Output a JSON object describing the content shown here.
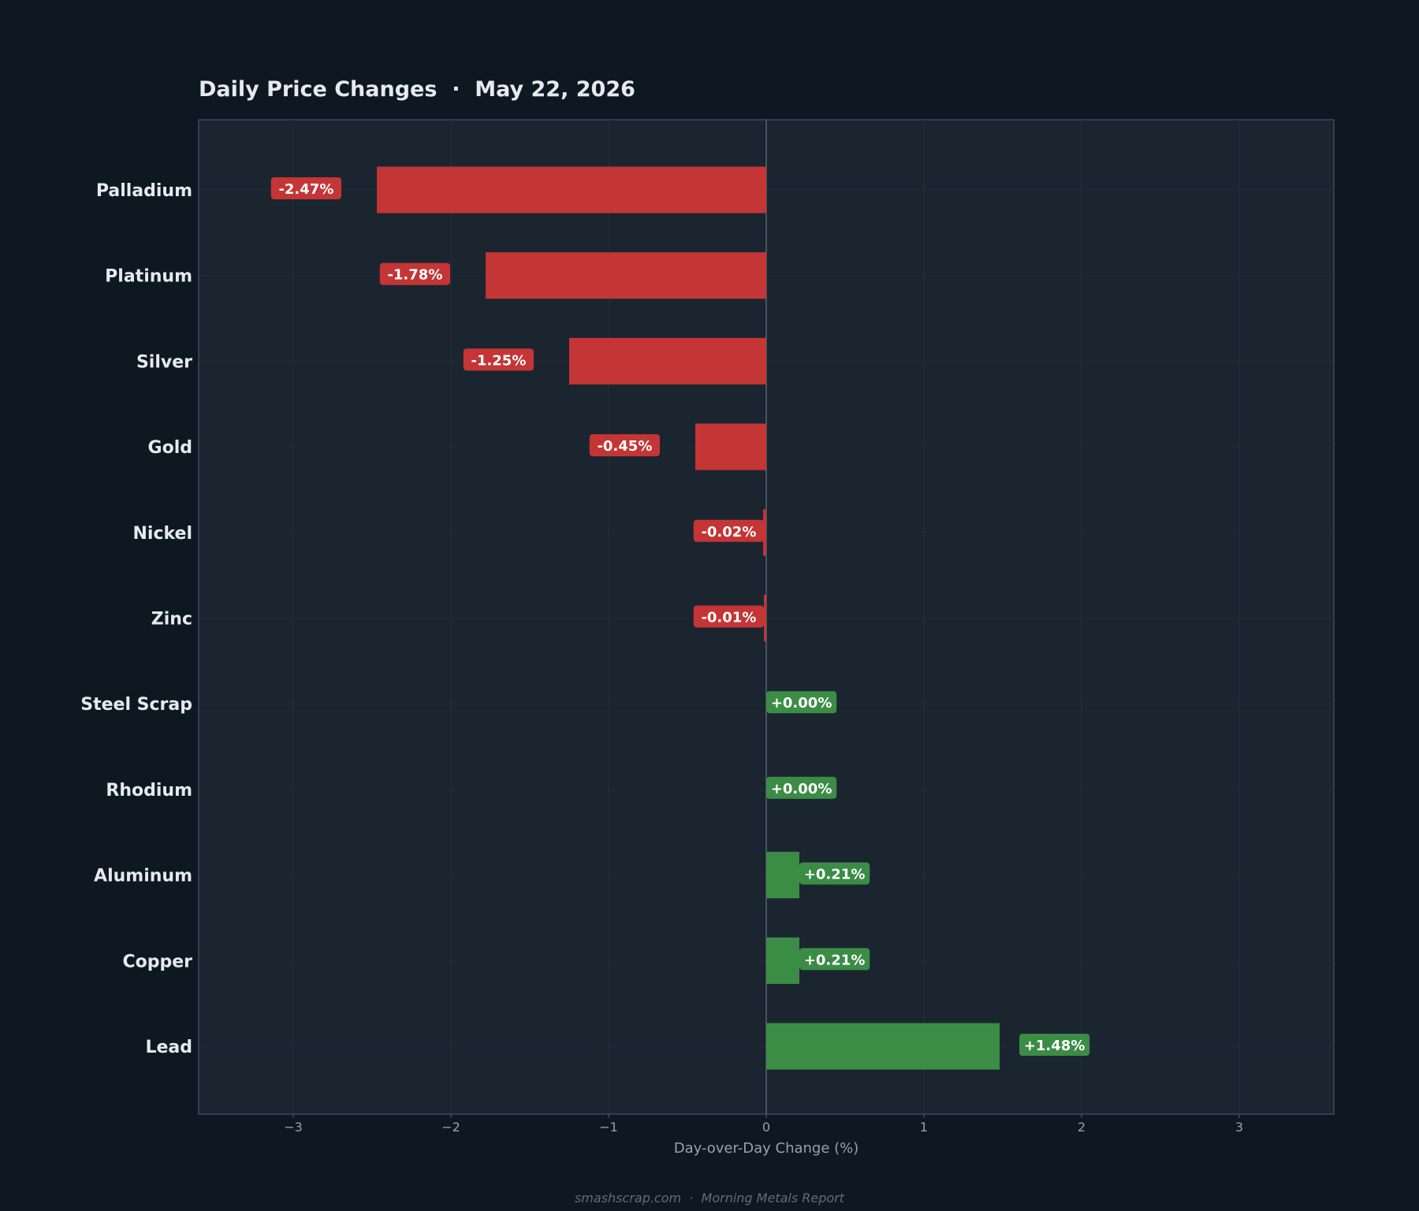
{
  "chart_data": {
    "type": "bar",
    "orientation": "horizontal",
    "title": "Daily Price Changes  ·  May 22, 2026",
    "xlabel": "Day-over-Day Change (%)",
    "ylabel": "",
    "xlim": [
      -3.6,
      3.6
    ],
    "xticks": [
      -3,
      -2,
      -1,
      0,
      1,
      2,
      3
    ],
    "xtick_labels": [
      "−3",
      "−2",
      "−1",
      "0",
      "1",
      "2",
      "3"
    ],
    "grid": true,
    "categories": [
      "Palladium",
      "Platinum",
      "Silver",
      "Gold",
      "Nickel",
      "Zinc",
      "Steel Scrap",
      "Rhodium",
      "Aluminum",
      "Copper",
      "Lead"
    ],
    "values": [
      -2.47,
      -1.78,
      -1.25,
      -0.45,
      -0.02,
      -0.01,
      0.0,
      0.0,
      0.21,
      0.21,
      1.48
    ],
    "value_labels": [
      "-2.47%",
      "-1.78%",
      "-1.25%",
      "-0.45%",
      "-0.02%",
      "-0.01%",
      "+0.00%",
      "+0.00%",
      "+0.21%",
      "+0.21%",
      "+1.48%"
    ],
    "colors": {
      "negative": "#c43535",
      "positive": "#3b8c45",
      "background": "#0e1822",
      "plot_background": "#1b2530"
    }
  },
  "footer": {
    "text": "smashscrap.com  ·  Morning Metals Report"
  }
}
